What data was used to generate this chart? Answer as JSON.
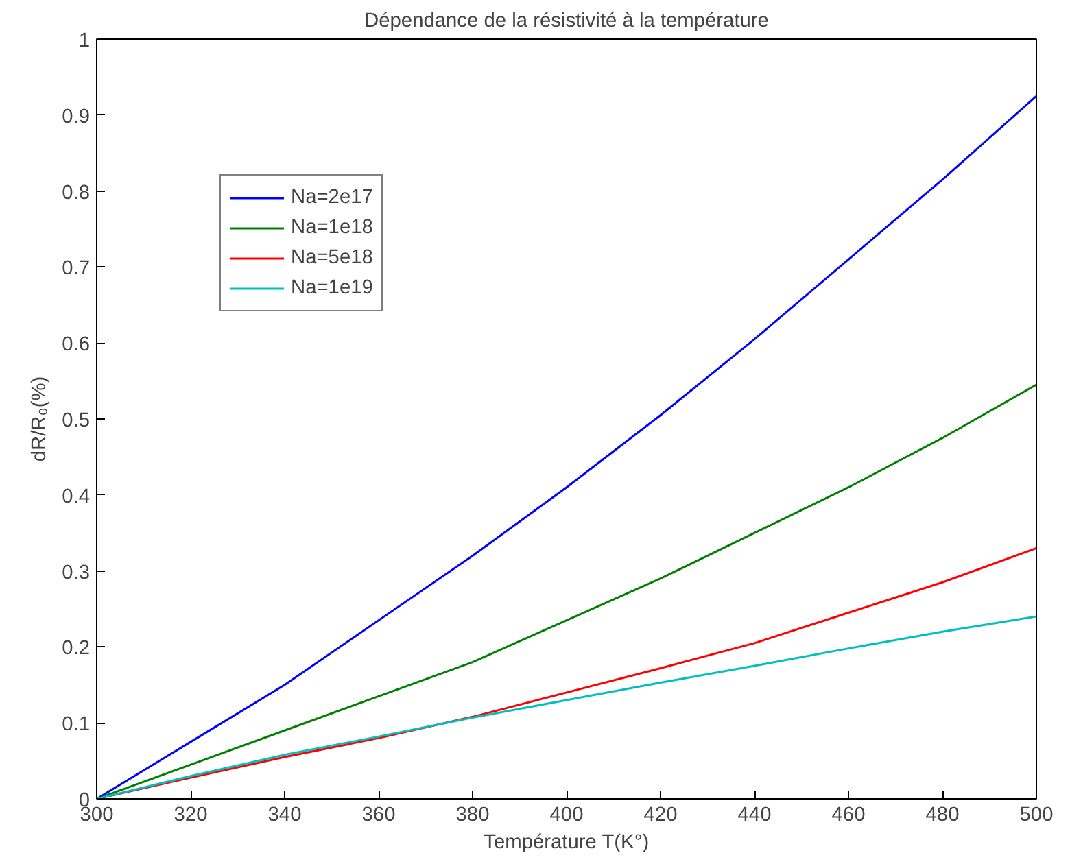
{
  "chart_data": {
    "type": "line",
    "title": "Dépendance de la résistivité à la température",
    "xlabel": "Température T(K°)",
    "ylabel": "dR/R₀(%)",
    "x": [
      300,
      320,
      340,
      360,
      380,
      400,
      420,
      440,
      460,
      480,
      500
    ],
    "series": [
      {
        "name": "Na=2e17",
        "color": "#0000ff",
        "values": [
          0,
          0.075,
          0.15,
          0.235,
          0.32,
          0.41,
          0.505,
          0.605,
          0.71,
          0.815,
          0.925
        ]
      },
      {
        "name": "Na=1e18",
        "color": "#008000",
        "values": [
          0,
          0.045,
          0.09,
          0.135,
          0.18,
          0.235,
          0.29,
          0.35,
          0.41,
          0.475,
          0.545
        ]
      },
      {
        "name": "Na=5e18",
        "color": "#ff0000",
        "values": [
          0,
          0.028,
          0.055,
          0.08,
          0.108,
          0.14,
          0.172,
          0.205,
          0.245,
          0.285,
          0.33
        ]
      },
      {
        "name": "Na=1e19",
        "color": "#00bfbf",
        "values": [
          0,
          0.03,
          0.058,
          0.082,
          0.107,
          0.13,
          0.153,
          0.175,
          0.198,
          0.22,
          0.24
        ]
      }
    ],
    "xlim": [
      300,
      500
    ],
    "xticks": [
      300,
      320,
      340,
      360,
      380,
      400,
      420,
      440,
      460,
      480,
      500
    ],
    "ylim": [
      0,
      1
    ],
    "yticks": [
      0,
      0.1,
      0.2,
      0.3,
      0.4,
      0.5,
      0.6,
      0.7,
      0.8,
      0.9,
      1
    ],
    "legend": "top left",
    "grid": false,
    "line_style": "solid",
    "marker": "none"
  }
}
